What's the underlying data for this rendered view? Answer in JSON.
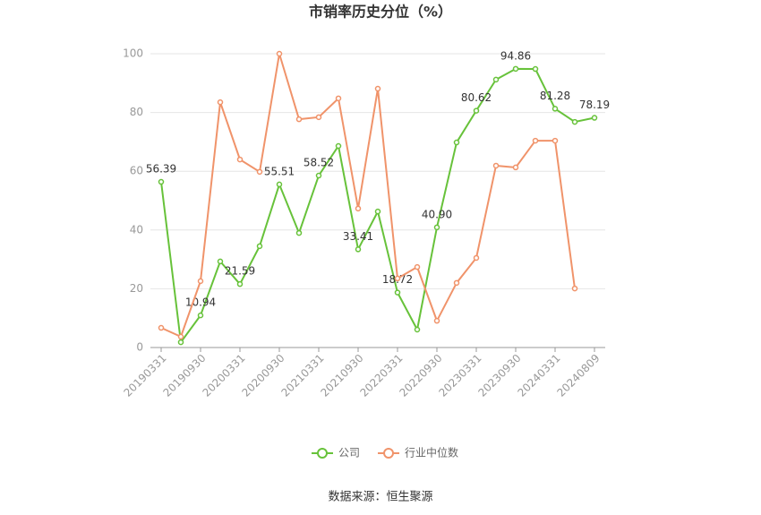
{
  "chart_data": {
    "type": "line",
    "title": "市销率历史分位（%）",
    "source": "数据来源：恒生聚源",
    "categories": [
      "20190331",
      null,
      "20190930",
      null,
      "20200331",
      null,
      "20200930",
      null,
      "20210331",
      null,
      "20210930",
      null,
      "20220331",
      null,
      "20220930",
      null,
      "20230331",
      null,
      "20230930",
      null,
      "20240331",
      null,
      "20240809"
    ],
    "series": [
      {
        "name": "公司",
        "color": "#67c23a",
        "values": [
          56.39,
          1.8,
          10.94,
          29.3,
          21.59,
          34.5,
          55.51,
          39.0,
          58.52,
          68.6,
          33.41,
          46.3,
          18.72,
          6.1,
          40.9,
          69.8,
          80.62,
          91.2,
          94.86,
          94.8,
          81.28,
          76.8,
          78.19
        ],
        "value_labels": [
          "56.39",
          null,
          "10.94",
          null,
          "21.59",
          null,
          "55.51",
          null,
          "58.52",
          null,
          "33.41",
          null,
          "18.72",
          null,
          "40.90",
          null,
          "80.62",
          null,
          "94.86",
          null,
          "81.28",
          null,
          "78.19"
        ]
      },
      {
        "name": "行业中位数",
        "color": "#f0936a",
        "values": [
          6.7,
          3.7,
          22.6,
          83.5,
          64.0,
          59.8,
          100,
          77.7,
          78.4,
          84.8,
          47.3,
          88.1,
          23.5,
          27.4,
          9.1,
          22.0,
          30.5,
          61.9,
          61.3,
          70.4,
          70.4,
          20.1,
          null
        ]
      }
    ],
    "ylim": [
      0,
      100
    ],
    "yticks": [
      0,
      20,
      40,
      60,
      80,
      100
    ],
    "grid": true
  }
}
